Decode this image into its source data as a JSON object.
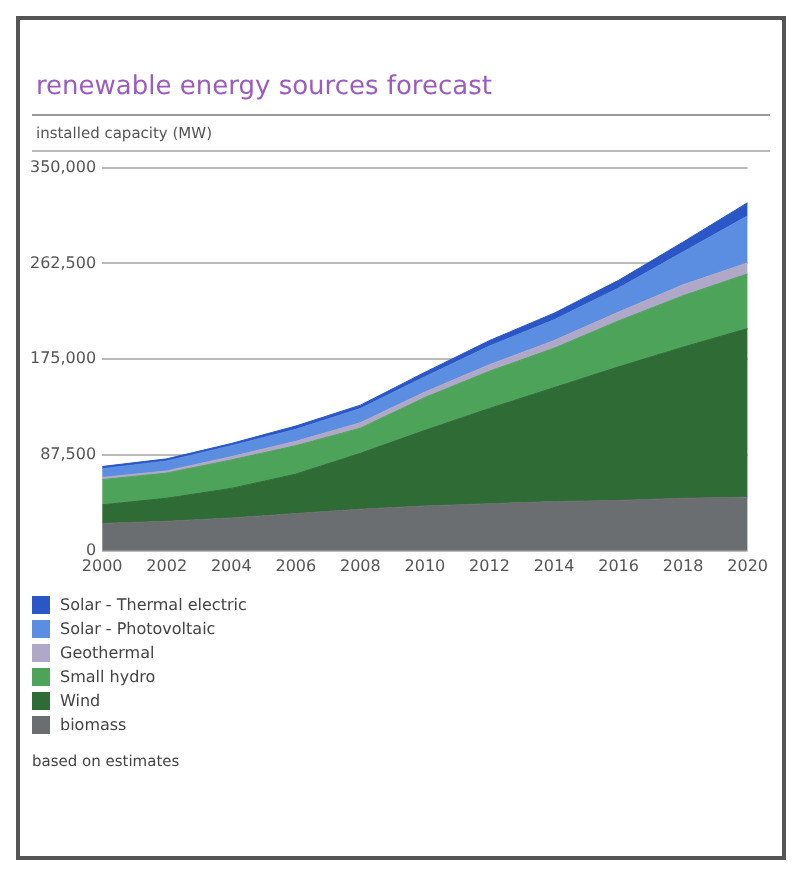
{
  "chart_data": {
    "type": "area",
    "stacked": true,
    "title": "renewable energy sources forecast",
    "ylabel": "installed capacity (MW)",
    "x": [
      2000,
      2002,
      2004,
      2006,
      2008,
      2010,
      2012,
      2014,
      2016,
      2018,
      2020
    ],
    "series": [
      {
        "name": "biomass",
        "color": "#6b6e70",
        "values": [
          25000,
          27000,
          30000,
          34000,
          38000,
          41000,
          43000,
          45000,
          46000,
          48000,
          49000
        ]
      },
      {
        "name": "Wind",
        "color": "#2f6b35",
        "values": [
          17000,
          21000,
          27000,
          36000,
          51000,
          69000,
          87000,
          104000,
          122000,
          138000,
          154000
        ]
      },
      {
        "name": "Small hydro",
        "color": "#4ea35a",
        "values": [
          23000,
          23000,
          26000,
          26000,
          23000,
          30000,
          34000,
          36000,
          42000,
          47000,
          50000
        ]
      },
      {
        "name": "Geothermal",
        "color": "#b0a8c8",
        "values": [
          2000,
          2000,
          3000,
          4000,
          5000,
          5000,
          6000,
          7000,
          8000,
          10000,
          10000
        ]
      },
      {
        "name": "Solar - Photovoltaic",
        "color": "#5b8de0",
        "values": [
          8000,
          9000,
          10000,
          11000,
          13000,
          14000,
          17000,
          19000,
          22000,
          30000,
          43000
        ]
      },
      {
        "name": "Solar - Thermal electric",
        "color": "#2a56c6",
        "values": [
          2000,
          2000,
          2000,
          3000,
          3000,
          4000,
          5000,
          6000,
          7000,
          9000,
          12000
        ]
      }
    ],
    "xlim": [
      2000,
      2020
    ],
    "xticks": [
      2000,
      2002,
      2004,
      2006,
      2008,
      2010,
      2012,
      2014,
      2016,
      2018,
      2020
    ],
    "ylim": [
      0,
      350000
    ],
    "yticks": [
      {
        "value": 0,
        "label": "0"
      },
      {
        "value": 87500,
        "label": "87,500"
      },
      {
        "value": 175000,
        "label": "175,000"
      },
      {
        "value": 262500,
        "label": "262,500"
      },
      {
        "value": 350000,
        "label": "350,000"
      }
    ],
    "grid": "y",
    "legend": "bottom",
    "marker": "none",
    "annotations": [
      "based on estimates"
    ]
  }
}
